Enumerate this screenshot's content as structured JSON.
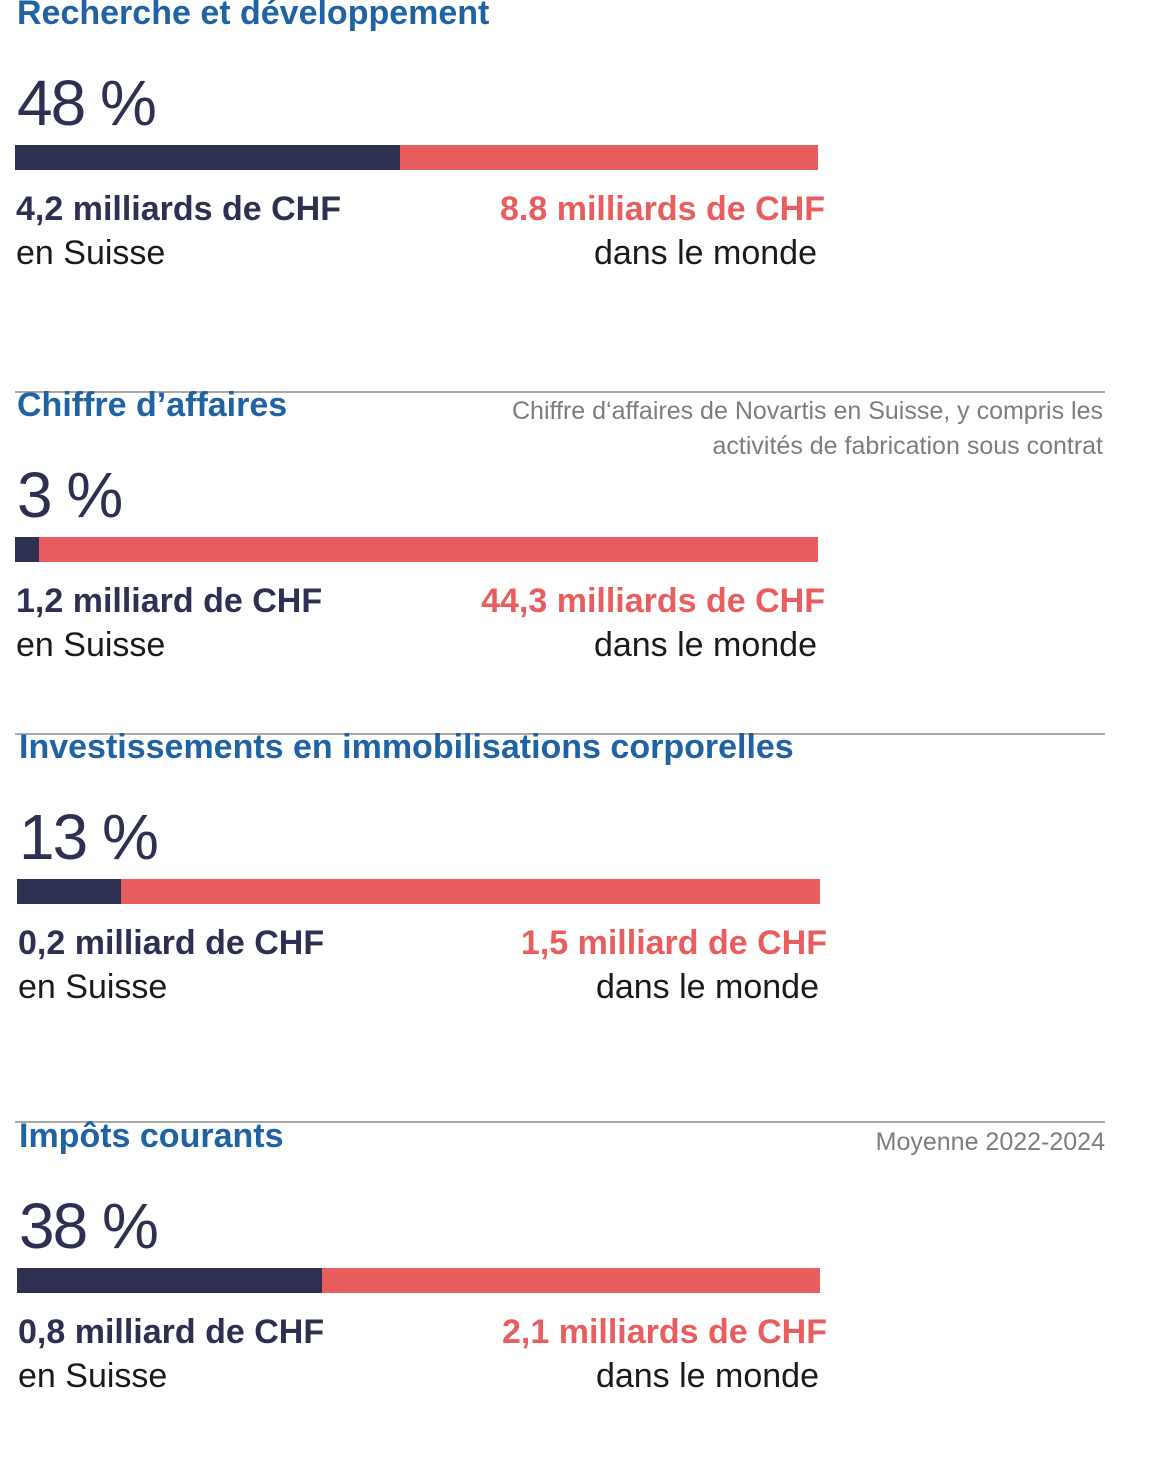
{
  "colors": {
    "swiss": "#2e3052",
    "world": "#e85d5d",
    "title": "#1f63a3"
  },
  "chart_data": {
    "type": "bar",
    "orientation": "horizontal-stacked-share",
    "sections": [
      {
        "title": "Recherche et développement",
        "note": "",
        "percent_label": "48 %",
        "share": 48,
        "swiss_value": "4,2 milliards de CHF",
        "swiss_label": "en Suisse",
        "world_value": "8.8 milliards de CHF",
        "world_label": "dans le monde"
      },
      {
        "title": "Chiffre d’affaires",
        "note": "Chiffre d‘affaires de Novartis en Suisse, y compris les activités de fabrication sous contrat",
        "percent_label": "3 %",
        "share": 3,
        "swiss_value": "1,2 milliard de CHF",
        "swiss_label": "en Suisse",
        "world_value": "44,3 milliards de CHF",
        "world_label": "dans le monde"
      },
      {
        "title": "Investissements en immobilisations corporelles",
        "note": "",
        "percent_label": "13 %",
        "share": 13,
        "swiss_value": "0,2 milliard de CHF",
        "swiss_label": "en Suisse",
        "world_value": "1,5 milliard de CHF",
        "world_label": "dans le monde"
      },
      {
        "title": "Impôts courants",
        "note": "Moyenne 2022-2024",
        "percent_label": "38 %",
        "share": 38,
        "swiss_value": "0,8 milliard de CHF",
        "swiss_label": "en Suisse",
        "world_value": "2,1 milliards de CHF",
        "world_label": "dans le monde"
      }
    ]
  }
}
